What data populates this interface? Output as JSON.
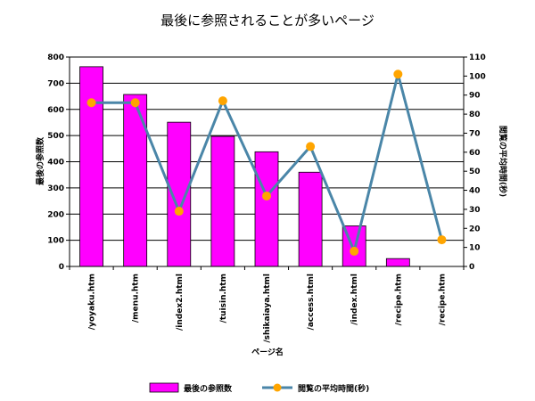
{
  "chart_data": {
    "type": "bar",
    "title": "最後に参照されることが多いページ",
    "xlabel": "ページ名",
    "categories": [
      "/yoyaku.htm",
      "/menu.htm",
      "/index2.html",
      "/tuisin.htm",
      "/shikaiaya.html",
      "/access.html",
      "/index.html",
      "/recipe.htm",
      "/recipe.htm"
    ],
    "series": [
      {
        "name": "最後の参照数",
        "type": "bar",
        "axis": "left",
        "color": "#ff00ff",
        "values": [
          763,
          657,
          551,
          497,
          438,
          360,
          155,
          30,
          0
        ]
      },
      {
        "name": "閲覧の平均時間(秒)",
        "type": "line",
        "axis": "right",
        "color": "#4a86a8",
        "marker_color": "#ffa500",
        "values": [
          86,
          86,
          29,
          87,
          37,
          63,
          8,
          101,
          14
        ]
      }
    ],
    "y_left": {
      "label": "最後の参照数",
      "ylim": [
        0,
        800
      ],
      "ticks": [
        "0",
        "100",
        "200",
        "300",
        "400",
        "500",
        "600",
        "700",
        "800"
      ]
    },
    "y_right": {
      "label": "閲覧の平均時間(秒)",
      "ylim": [
        0,
        110
      ],
      "ticks": [
        "0",
        "10",
        "20",
        "30",
        "40",
        "50",
        "60",
        "70",
        "80",
        "90",
        "100",
        "110"
      ]
    },
    "grid": true,
    "legend_position": "bottom"
  }
}
